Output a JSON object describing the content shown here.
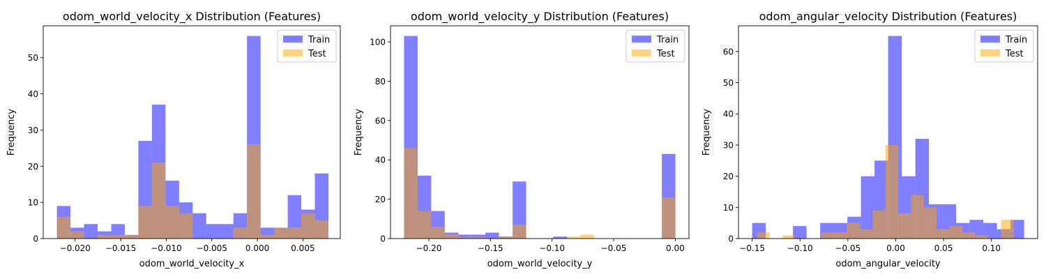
{
  "colors": {
    "train": "#0000ff",
    "test": "#ffa500",
    "bar_opacity": 0.5
  },
  "chart_data": [
    {
      "type": "histogram",
      "title": "odom_world_velocity_x Distribution (Features)",
      "xlabel": "odom_world_velocity_x",
      "ylabel": "Frequency",
      "xlim": [
        -0.0235,
        0.0091
      ],
      "ylim": [
        0,
        58.8
      ],
      "xticks": [
        -0.02,
        -0.015,
        -0.01,
        -0.005,
        0.0,
        0.005
      ],
      "xtick_labels": [
        "−0.020",
        "−0.015",
        "−0.010",
        "−0.005",
        "0.000",
        "0.005"
      ],
      "yticks": [
        0,
        10,
        20,
        30,
        40,
        50
      ],
      "ytick_labels": [
        "0",
        "10",
        "20",
        "30",
        "40",
        "50"
      ],
      "legend": {
        "position": "top-right",
        "entries": [
          "Train",
          "Test"
        ]
      },
      "series": [
        {
          "name": "Train",
          "bin_edges": [
            -0.022,
            -0.02051,
            -0.01902,
            -0.01753,
            -0.01604,
            -0.01455,
            -0.01306,
            -0.01157,
            -0.01008,
            -0.00859,
            -0.0071,
            -0.00561,
            -0.00412,
            -0.00263,
            -0.00114,
            0.00035,
            0.00184,
            0.00333,
            0.00482,
            0.00631,
            0.0078
          ],
          "counts": [
            9,
            3,
            4,
            2,
            4,
            1,
            27,
            37,
            16,
            10,
            7,
            4,
            4,
            7,
            56,
            3,
            3,
            12,
            8,
            18
          ]
        },
        {
          "name": "Test",
          "bin_edges": [
            -0.022,
            -0.02051,
            -0.01902,
            -0.01753,
            -0.01604,
            -0.01455,
            -0.01306,
            -0.01157,
            -0.01008,
            -0.00859,
            -0.0071,
            -0.00561,
            -0.00412,
            -0.00263,
            -0.00114,
            0.00035,
            0.00184,
            0.00333,
            0.00482,
            0.00631,
            0.0078
          ],
          "counts": [
            6,
            2,
            0,
            1,
            1,
            1,
            9,
            21,
            9,
            7,
            0,
            0,
            0,
            3,
            26,
            1,
            3,
            3,
            7,
            5
          ]
        }
      ]
    },
    {
      "type": "histogram",
      "title": "odom_world_velocity_y Distribution (Features)",
      "xlabel": "odom_world_velocity_y",
      "ylabel": "Frequency",
      "xlim": [
        -0.2311,
        0.0111
      ],
      "ylim": [
        0,
        108.15
      ],
      "xticks": [
        -0.2,
        -0.15,
        -0.1,
        -0.05,
        0.0
      ],
      "xtick_labels": [
        "−0.20",
        "−0.15",
        "−0.10",
        "−0.05",
        "0.00"
      ],
      "yticks": [
        0,
        20,
        40,
        60,
        80,
        100
      ],
      "ytick_labels": [
        "0",
        "20",
        "40",
        "60",
        "80",
        "100"
      ],
      "legend": {
        "position": "top-right",
        "entries": [
          "Train",
          "Test"
        ]
      },
      "series": [
        {
          "name": "Train",
          "bin_edges": [
            -0.2201,
            -0.20909,
            -0.19808,
            -0.18707,
            -0.17606,
            -0.16505,
            -0.15404,
            -0.14303,
            -0.13202,
            -0.12101,
            -0.11,
            -0.09899,
            -0.08798,
            -0.07697,
            -0.06596,
            -0.05495,
            -0.04394,
            -0.03293,
            -0.02192,
            -0.01091,
            0.0001
          ],
          "counts": [
            103,
            32,
            14,
            3,
            2,
            2,
            3,
            1,
            29,
            0,
            0,
            1,
            0,
            0,
            0,
            0,
            0,
            0,
            0,
            43
          ]
        },
        {
          "name": "Test",
          "bin_edges": [
            -0.2201,
            -0.20909,
            -0.19808,
            -0.18707,
            -0.17606,
            -0.16505,
            -0.15404,
            -0.14303,
            -0.13202,
            -0.12101,
            -0.11,
            -0.09899,
            -0.08798,
            -0.07697,
            -0.06596,
            -0.05495,
            -0.04394,
            -0.03293,
            -0.02192,
            -0.01091,
            0.0001
          ],
          "counts": [
            46,
            14,
            6,
            2,
            1,
            1,
            0,
            1,
            7,
            0,
            0,
            0,
            1,
            2,
            0,
            0,
            0,
            0,
            0,
            21
          ]
        }
      ]
    },
    {
      "type": "histogram",
      "title": "odom_angular_velocity Distribution (Features)",
      "xlabel": "odom_angular_velocity",
      "ylabel": "Frequency",
      "xlim": [
        -0.1643,
        0.1483
      ],
      "ylim": [
        0,
        68.25
      ],
      "xticks": [
        -0.15,
        -0.1,
        -0.05,
        0.0,
        0.05,
        0.1
      ],
      "xtick_labels": [
        "−0.15",
        "−0.10",
        "−0.05",
        "0.00",
        "0.05",
        "0.10"
      ],
      "yticks": [
        0,
        10,
        20,
        30,
        40,
        50,
        60
      ],
      "ytick_labels": [
        "0",
        "10",
        "20",
        "30",
        "40",
        "50",
        "60"
      ],
      "legend": {
        "position": "top-right",
        "entries": [
          "Train",
          "Test"
        ]
      },
      "series": [
        {
          "name": "Train",
          "bin_edges": [
            -0.15,
            -0.13579,
            -0.12158,
            -0.10737,
            -0.09316,
            -0.07895,
            -0.06474,
            -0.05053,
            -0.03632,
            -0.02211,
            -0.0079,
            0.00631,
            0.02052,
            0.03473,
            0.04894,
            0.06315,
            0.07736,
            0.09157,
            0.10578,
            0.12,
            0.1342
          ],
          "counts": [
            5,
            0,
            0,
            4,
            0,
            5,
            5,
            7,
            20,
            25,
            65,
            20,
            32,
            11,
            11,
            5,
            6,
            5,
            3,
            6
          ]
        },
        {
          "name": "Test",
          "bin_edges": [
            -0.145,
            -0.13158,
            -0.11816,
            -0.10474,
            -0.09132,
            -0.0779,
            -0.06448,
            -0.05106,
            -0.03764,
            -0.02422,
            -0.0108,
            0.00262,
            0.01604,
            0.02946,
            0.04288,
            0.0563,
            0.06972,
            0.08314,
            0.09656,
            0.10998,
            0.1234
          ],
          "counts": [
            2,
            0,
            1,
            0,
            0,
            2,
            2,
            5,
            3,
            9,
            30,
            8,
            14,
            10,
            3,
            4,
            2,
            1,
            0,
            6
          ]
        }
      ]
    }
  ]
}
